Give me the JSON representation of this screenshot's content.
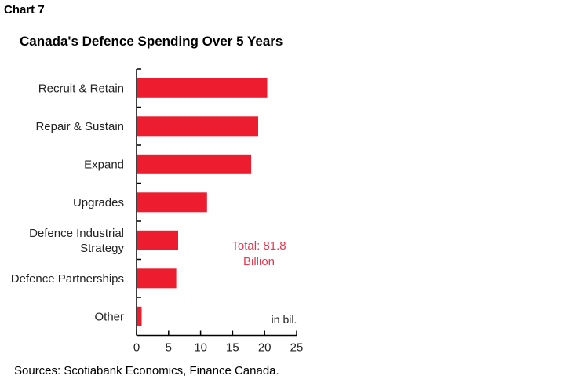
{
  "header": {
    "chart_number": "Chart 7"
  },
  "footer": {
    "source": "Sources: Scotiabank Economics, Finance Canada."
  },
  "colors": {
    "bar": "#ED1C2E",
    "annotation": "#E8384F",
    "axis": "#000000"
  },
  "chart_data": {
    "type": "bar",
    "orientation": "horizontal",
    "title": "Canada's Defence Spending Over 5 Years",
    "categories": [
      [
        "Recruit & Retain"
      ],
      [
        "Repair & Sustain"
      ],
      [
        "Expand"
      ],
      [
        "Upgrades"
      ],
      [
        "Defence Industrial",
        "Strategy"
      ],
      [
        "Defence Partnerships"
      ],
      [
        "Other"
      ]
    ],
    "values": [
      20.4,
      19.0,
      17.9,
      11.0,
      6.5,
      6.2,
      0.8
    ],
    "xlim": [
      0,
      25
    ],
    "xticks": [
      0,
      5,
      10,
      15,
      20,
      25
    ],
    "grid": false,
    "annotations": {
      "total": [
        "Total: 81.8",
        "Billion"
      ],
      "unit": "in bil."
    }
  }
}
